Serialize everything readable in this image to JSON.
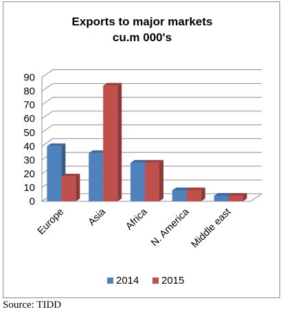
{
  "source_note": "Source: TIDD",
  "colors": {
    "series_2014": "#4f81bd",
    "series_2015": "#c0504d",
    "grid": "#8c8c8c",
    "frame": "#8c8c8c"
  },
  "chart_data": {
    "type": "bar",
    "style": "3d-clustered-column",
    "title_lines": [
      "Exports to major markets",
      "cu.m 000's"
    ],
    "categories": [
      "Europe",
      "Asia",
      "Africa",
      "N. America",
      "Middle east"
    ],
    "series": [
      {
        "name": "2014",
        "values": [
          40,
          35,
          28,
          8,
          4
        ]
      },
      {
        "name": "2015",
        "values": [
          18,
          84,
          28,
          8,
          4
        ]
      }
    ],
    "ylim": [
      0,
      90
    ],
    "yticks": [
      0,
      10,
      20,
      30,
      40,
      50,
      60,
      70,
      80,
      90
    ],
    "grid": true,
    "legend_position": "bottom"
  }
}
